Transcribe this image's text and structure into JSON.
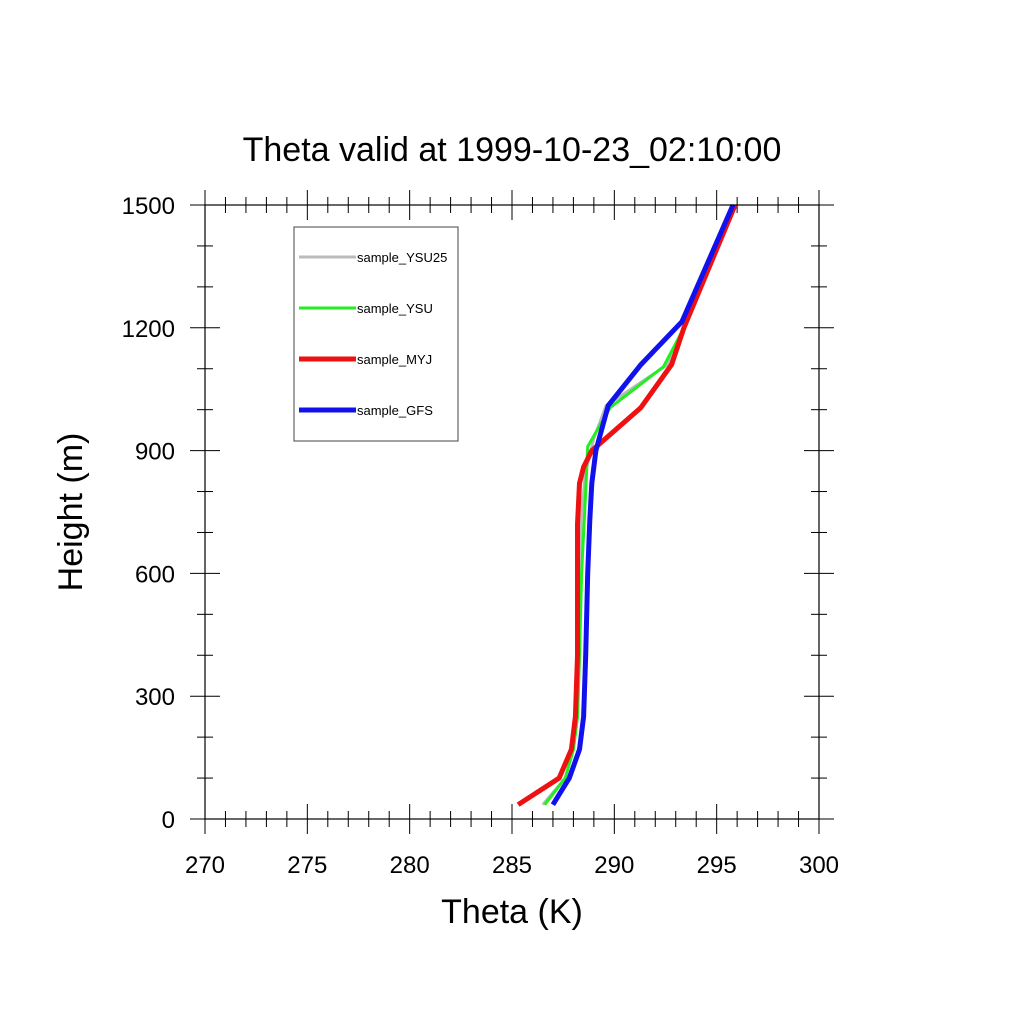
{
  "chart_data": {
    "type": "line",
    "title": "Theta valid at 1999-10-23_02:10:00",
    "xlabel": "Theta (K)",
    "ylabel": "Height (m)",
    "xlim": [
      270,
      300
    ],
    "ylim": [
      0,
      1500
    ],
    "x_ticks": [
      270,
      275,
      280,
      285,
      290,
      295,
      300
    ],
    "y_ticks": [
      0,
      300,
      600,
      900,
      1200,
      1500
    ],
    "x_minor_step": 1,
    "y_minor_step": 100,
    "grid": false,
    "legend_position": "top-left",
    "series": [
      {
        "name": "sample_YSU25",
        "color": "#bbbbbb",
        "width": 3,
        "points": [
          [
            286.5,
            35
          ],
          [
            287.6,
            100
          ],
          [
            288.0,
            170
          ],
          [
            288.2,
            250
          ],
          [
            288.3,
            400
          ],
          [
            288.3,
            600
          ],
          [
            288.4,
            750
          ],
          [
            288.6,
            850
          ],
          [
            289.0,
            930
          ],
          [
            289.6,
            1010
          ],
          [
            292.6,
            1110
          ],
          [
            293.4,
            1200
          ],
          [
            295.9,
            1500
          ]
        ]
      },
      {
        "name": "sample_YSU",
        "color": "#22ee22",
        "width": 3,
        "points": [
          [
            286.6,
            35
          ],
          [
            287.6,
            100
          ],
          [
            288.0,
            170
          ],
          [
            288.2,
            250
          ],
          [
            288.3,
            400
          ],
          [
            288.4,
            600
          ],
          [
            288.6,
            800
          ],
          [
            288.7,
            910
          ],
          [
            289.8,
            1005
          ],
          [
            292.4,
            1105
          ],
          [
            293.4,
            1200
          ],
          [
            295.9,
            1500
          ]
        ]
      },
      {
        "name": "sample_MYJ",
        "color": "#ee1111",
        "width": 5,
        "points": [
          [
            285.3,
            35
          ],
          [
            287.3,
            100
          ],
          [
            287.9,
            170
          ],
          [
            288.1,
            250
          ],
          [
            288.2,
            400
          ],
          [
            288.2,
            600
          ],
          [
            288.2,
            720
          ],
          [
            288.3,
            820
          ],
          [
            288.5,
            860
          ],
          [
            288.9,
            900
          ],
          [
            291.3,
            1005
          ],
          [
            292.8,
            1110
          ],
          [
            293.4,
            1200
          ],
          [
            295.9,
            1500
          ]
        ]
      },
      {
        "name": "sample_GFS",
        "color": "#1111ee",
        "width": 5,
        "points": [
          [
            287.0,
            35
          ],
          [
            287.8,
            100
          ],
          [
            288.3,
            170
          ],
          [
            288.5,
            250
          ],
          [
            288.6,
            400
          ],
          [
            288.7,
            600
          ],
          [
            288.8,
            730
          ],
          [
            288.9,
            820
          ],
          [
            289.1,
            900
          ],
          [
            289.7,
            1010
          ],
          [
            291.3,
            1110
          ],
          [
            293.3,
            1215
          ],
          [
            295.8,
            1500
          ]
        ]
      }
    ]
  }
}
